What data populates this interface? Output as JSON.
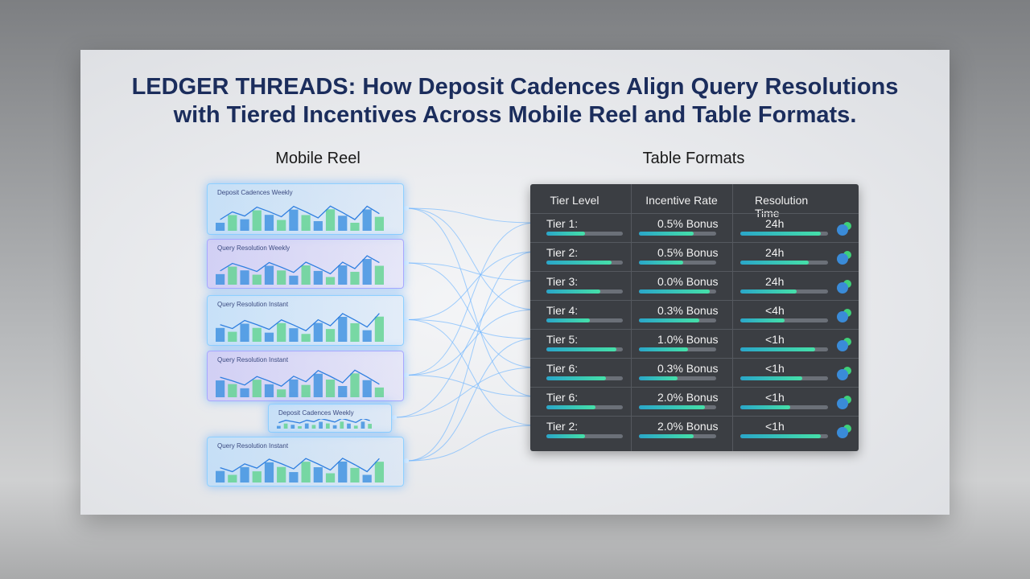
{
  "header": {
    "title_lines": [
      "LEDGER THREADS: How Deposit Cadences Align Query Resolutions",
      "with Tiered Incentives Across Mobile Reel and Table Formats."
    ]
  },
  "mobile_reel": {
    "title": "Mobile Reel",
    "cards": [
      "Deposit Cadences Weekly",
      "Query Resolution Weekly",
      "Query Resolution Instant",
      "Query Resolution Instant",
      "Deposit Cadences Weekly",
      "Query Resolution Instant"
    ]
  },
  "table": {
    "title": "Table Formats",
    "columns": [
      "Tier Level",
      "Incentive Rate",
      "Resolution Time"
    ],
    "rows": [
      [
        "Tier 1:",
        "0.5% Bonus",
        "24h"
      ],
      [
        "Tier 2:",
        "0.5% Bonus",
        "24h"
      ],
      [
        "Tier 3:",
        "0.0% Bonus",
        "24h"
      ],
      [
        "Tier 4:",
        "0.3% Bonus",
        "<4h"
      ],
      [
        "Tier 5:",
        "1.0% Bonus",
        "<1h"
      ],
      [
        "Tier 6:",
        "0.3% Bonus",
        "<1h"
      ],
      [
        "Tier 6:",
        "2.0% Bonus",
        "<1h"
      ],
      [
        "Tier 2:",
        "2.0% Bonus",
        "<1h"
      ]
    ]
  }
}
